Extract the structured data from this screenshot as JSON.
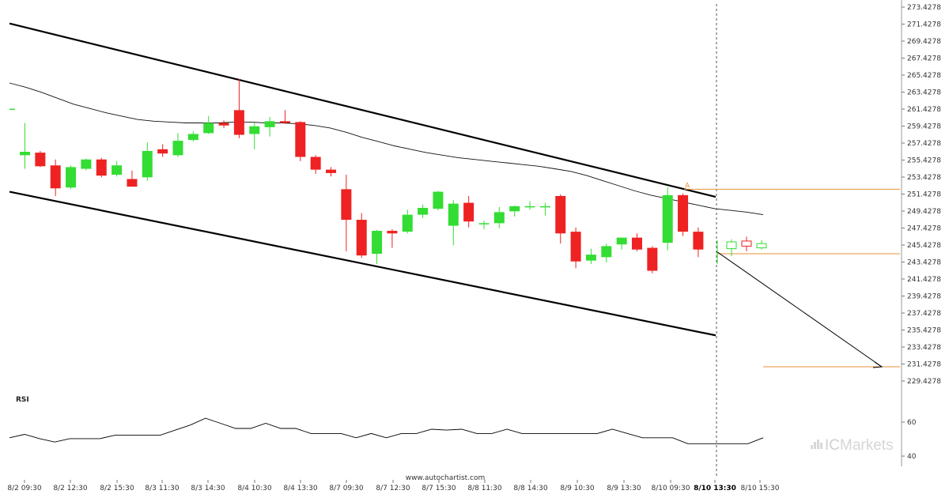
{
  "chart_data": {
    "type": "candlestick",
    "y_axis": {
      "ticks": [
        "273.4278",
        "271.4278",
        "269.4278",
        "267.4278",
        "265.4278",
        "263.4278",
        "261.4278",
        "259.4278",
        "257.4278",
        "255.4278",
        "253.4278",
        "251.4278",
        "249.4278",
        "247.4278",
        "245.4278",
        "243.4278",
        "241.4278",
        "239.4278",
        "237.4278",
        "235.4278",
        "233.4278",
        "231.4278",
        "229.4278"
      ],
      "range": [
        228.6,
        273.9
      ],
      "grid": false
    },
    "x_axis": {
      "labels": [
        "8/2 09:30",
        "8/2 12:30",
        "8/2 15:30",
        "8/3 11:30",
        "8/3 14:30",
        "8/4 10:30",
        "8/4 13:30",
        "8/7 09:30",
        "8/7 12:30",
        "8/7 15:30",
        "8/8 11:30",
        "8/8 14:30",
        "8/9 10:30",
        "8/9 13:30",
        "8/10 09:30",
        "8/10 13:30",
        "8/10 15:30"
      ],
      "highlight": "8/10 13:30"
    },
    "candles": [
      {
        "o": 256.0,
        "h": 259.8,
        "l": 254.4,
        "c": 256.4
      },
      {
        "o": 256.3,
        "h": 256.5,
        "l": 254.6,
        "c": 254.7
      },
      {
        "o": 254.8,
        "h": 255.5,
        "l": 251.2,
        "c": 252.1
      },
      {
        "o": 252.2,
        "h": 254.8,
        "l": 252.0,
        "c": 254.6
      },
      {
        "o": 254.4,
        "h": 255.6,
        "l": 254.2,
        "c": 255.5
      },
      {
        "o": 255.5,
        "h": 255.7,
        "l": 253.4,
        "c": 253.6
      },
      {
        "o": 253.7,
        "h": 255.3,
        "l": 253.5,
        "c": 254.8
      },
      {
        "o": 253.2,
        "h": 254.2,
        "l": 252.3,
        "c": 252.3
      },
      {
        "o": 253.4,
        "h": 257.5,
        "l": 253.0,
        "c": 256.5
      },
      {
        "o": 256.7,
        "h": 257.3,
        "l": 255.8,
        "c": 256.2
      },
      {
        "o": 256.0,
        "h": 258.6,
        "l": 255.8,
        "c": 257.7
      },
      {
        "o": 257.8,
        "h": 258.8,
        "l": 257.6,
        "c": 258.5
      },
      {
        "o": 258.6,
        "h": 260.6,
        "l": 258.5,
        "c": 259.8
      },
      {
        "o": 259.8,
        "h": 260.1,
        "l": 259.2,
        "c": 259.5
      },
      {
        "o": 261.3,
        "h": 265.0,
        "l": 258.0,
        "c": 258.4
      },
      {
        "o": 258.5,
        "h": 259.8,
        "l": 256.7,
        "c": 259.4
      },
      {
        "o": 259.3,
        "h": 260.5,
        "l": 258.2,
        "c": 260.0
      },
      {
        "o": 260.0,
        "h": 261.3,
        "l": 259.7,
        "c": 259.8
      },
      {
        "o": 259.9,
        "h": 260.0,
        "l": 255.3,
        "c": 255.8
      },
      {
        "o": 255.8,
        "h": 256.0,
        "l": 253.8,
        "c": 254.3
      },
      {
        "o": 254.3,
        "h": 254.6,
        "l": 253.5,
        "c": 253.9
      },
      {
        "o": 252.0,
        "h": 253.7,
        "l": 244.7,
        "c": 248.4
      },
      {
        "o": 248.4,
        "h": 249.2,
        "l": 243.9,
        "c": 244.2
      },
      {
        "o": 244.4,
        "h": 247.2,
        "l": 243.2,
        "c": 247.1
      },
      {
        "o": 247.1,
        "h": 247.3,
        "l": 245.1,
        "c": 246.8
      },
      {
        "o": 247.0,
        "h": 249.6,
        "l": 246.8,
        "c": 249.0
      },
      {
        "o": 249.0,
        "h": 250.2,
        "l": 248.6,
        "c": 249.8
      },
      {
        "o": 249.7,
        "h": 251.8,
        "l": 249.5,
        "c": 251.7
      },
      {
        "o": 247.7,
        "h": 250.7,
        "l": 245.4,
        "c": 250.3
      },
      {
        "o": 250.4,
        "h": 251.2,
        "l": 247.5,
        "c": 248.2
      },
      {
        "o": 248.0,
        "h": 248.3,
        "l": 247.3,
        "c": 248.0
      },
      {
        "o": 248.0,
        "h": 249.9,
        "l": 247.4,
        "c": 249.3
      },
      {
        "o": 249.4,
        "h": 250.1,
        "l": 248.8,
        "c": 250.0
      },
      {
        "o": 250.0,
        "h": 250.6,
        "l": 249.6,
        "c": 250.0
      },
      {
        "o": 250.0,
        "h": 250.4,
        "l": 248.9,
        "c": 250.0
      },
      {
        "o": 251.2,
        "h": 251.4,
        "l": 245.6,
        "c": 246.8
      },
      {
        "o": 247.0,
        "h": 247.5,
        "l": 242.7,
        "c": 243.5
      },
      {
        "o": 243.6,
        "h": 245.0,
        "l": 243.2,
        "c": 244.3
      },
      {
        "o": 244.0,
        "h": 245.6,
        "l": 243.4,
        "c": 245.3
      },
      {
        "o": 245.5,
        "h": 246.3,
        "l": 244.9,
        "c": 246.3
      },
      {
        "o": 246.3,
        "h": 246.8,
        "l": 244.7,
        "c": 244.9
      },
      {
        "o": 245.1,
        "h": 245.3,
        "l": 242.1,
        "c": 242.4
      },
      {
        "o": 245.7,
        "h": 252.2,
        "l": 244.8,
        "c": 251.3
      },
      {
        "o": 251.3,
        "h": 251.5,
        "l": 246.5,
        "c": 247.0
      },
      {
        "o": 247.0,
        "h": 247.5,
        "l": 244.0,
        "c": 244.9
      }
    ],
    "projection_candles": [
      {
        "o": 244.9,
        "h": 246.0,
        "l": 243.2,
        "c": 245.7
      },
      {
        "o": 245.0,
        "h": 246.1,
        "l": 244.1,
        "c": 245.8
      },
      {
        "o": 245.9,
        "h": 246.4,
        "l": 244.7,
        "c": 245.3
      },
      {
        "o": 245.1,
        "h": 246.0,
        "l": 244.9,
        "c": 245.6
      }
    ],
    "moving_average": [
      264.5,
      264.0,
      263.4,
      262.7,
      262.0,
      261.5,
      261.0,
      260.6,
      260.2,
      260.0,
      259.9,
      259.8,
      259.8,
      259.8,
      259.9,
      259.9,
      259.8,
      259.8,
      259.7,
      259.5,
      259.2,
      258.7,
      258.1,
      257.6,
      257.1,
      256.7,
      256.3,
      256.0,
      255.7,
      255.5,
      255.3,
      255.1,
      254.9,
      254.7,
      254.4,
      254.1,
      253.6,
      253.0,
      252.4,
      251.8,
      251.3,
      250.9,
      250.5,
      250.1,
      249.7,
      249.5,
      249.3,
      249.0
    ],
    "channel": {
      "upper": [
        [
          0,
          271.5
        ],
        [
          47,
          251.1
        ]
      ],
      "lower": [
        [
          0,
          251.7
        ],
        [
          47,
          234.8
        ]
      ]
    },
    "resistance_level": 252.0,
    "current_level": 244.4,
    "target_level": 231.1,
    "marker_label": "A",
    "rsi": {
      "title": "RSI",
      "ticks": [
        "60",
        "40"
      ],
      "range": [
        35,
        75
      ],
      "values": [
        50.8,
        52.8,
        50.3,
        48.3,
        50.3,
        50.3,
        50.3,
        52.3,
        52.3,
        52.3,
        52.3,
        55.3,
        58.3,
        62.3,
        59.3,
        56.3,
        56.3,
        59.3,
        56.3,
        56.3,
        53.3,
        53.3,
        53.3,
        50.8,
        53.3,
        50.8,
        53.3,
        53.3,
        55.8,
        55.3,
        55.8,
        53.3,
        53.3,
        55.8,
        53.3,
        53.3,
        53.3,
        53.3,
        53.3,
        53.3,
        55.8,
        53.3,
        50.8,
        50.8,
        50.8,
        47.3,
        47.3,
        47.3,
        47.3,
        47.3,
        50.8
      ]
    },
    "colors": {
      "up": "#33dd33",
      "down": "#ee2222",
      "level_line": "#e8903a",
      "channel": "#000000",
      "ma": "#111111",
      "rsi": "#000000"
    }
  },
  "footer": {
    "credit": "www.autochartist.com",
    "brand_ic": "IC",
    "brand_markets": "Markets"
  }
}
